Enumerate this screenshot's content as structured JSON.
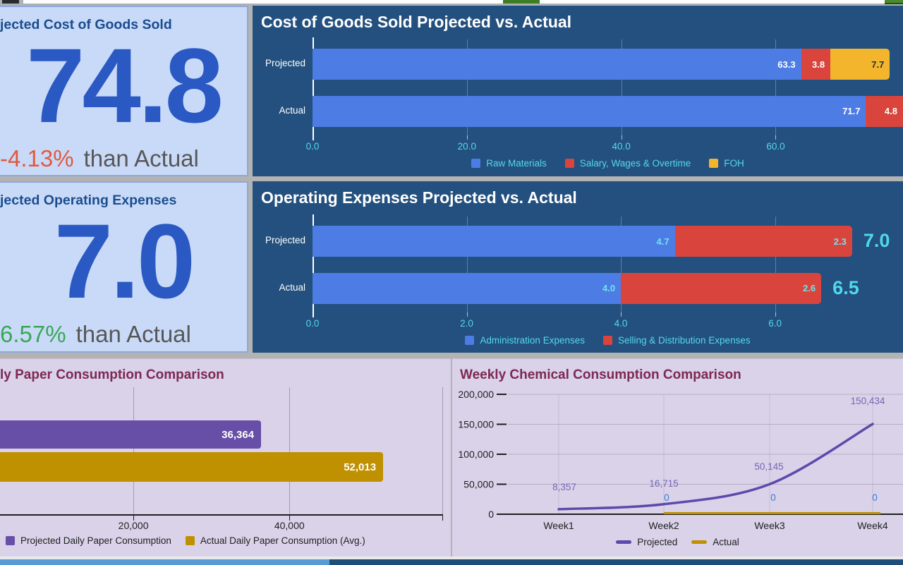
{
  "kpis": {
    "cogs": {
      "title": "jected Cost of Goods Sold",
      "value": "74.8",
      "delta": "-4.13%",
      "delta_color": "#e0593f",
      "suffix": "than Actual"
    },
    "opex": {
      "title": "jected Operating Expenses",
      "value": "7.0",
      "delta": "6.57%",
      "delta_color": "#3aa757",
      "suffix": "than Actual"
    }
  },
  "chart_data": [
    {
      "id": "cogs",
      "type": "bar",
      "orientation": "horizontal",
      "stacked": true,
      "title": "Cost of Goods Sold Projected vs. Actual",
      "categories": [
        "Projected",
        "Actual"
      ],
      "series": [
        {
          "name": "Raw Materials",
          "color": "#4d7de4",
          "values": [
            63.3,
            71.7
          ],
          "labels": [
            "63.3",
            "71.7"
          ],
          "label_color": "#ffffff"
        },
        {
          "name": "Salary, Wages & Overtime",
          "color": "#d9453c",
          "values": [
            3.8,
            4.8
          ],
          "labels": [
            "3.8",
            "4.8"
          ],
          "label_color": "#ffffff"
        },
        {
          "name": "FOH",
          "color": "#f2b52c",
          "values": [
            7.7,
            null
          ],
          "labels": [
            "7.7",
            null
          ],
          "label_color": "#2a2f36"
        }
      ],
      "x_ticks": [
        {
          "v": 0,
          "label": "0.0"
        },
        {
          "v": 20,
          "label": "20.0"
        },
        {
          "v": 40,
          "label": "40.0"
        },
        {
          "v": 60,
          "label": "60.0"
        }
      ],
      "xlim": [
        0,
        76.5
      ],
      "grid": true,
      "legend_position": "bottom"
    },
    {
      "id": "opex",
      "type": "bar",
      "orientation": "horizontal",
      "stacked": true,
      "title": "Operating Expenses Projected vs. Actual",
      "categories": [
        "Projected",
        "Actual"
      ],
      "totals": [
        "7.0",
        "6.5"
      ],
      "series": [
        {
          "name": "Administration Expenses",
          "color": "#4d7de4",
          "values": [
            4.7,
            4.0
          ],
          "labels": [
            "4.7",
            "4.0"
          ],
          "label_color": "#6fe3ef"
        },
        {
          "name": "Selling & Distribution Expenses",
          "color": "#d9453c",
          "values": [
            2.3,
            2.6
          ],
          "labels": [
            "2.3",
            "2.6"
          ],
          "label_color": "#6fe3ef"
        }
      ],
      "x_ticks": [
        {
          "v": 0,
          "label": "0.0"
        },
        {
          "v": 2,
          "label": "2.0"
        },
        {
          "v": 4,
          "label": "4.0"
        },
        {
          "v": 6,
          "label": "6.0"
        }
      ],
      "xlim": [
        0,
        7.66
      ],
      "grid": true,
      "legend_position": "bottom"
    },
    {
      "id": "paper",
      "type": "bar",
      "orientation": "horizontal",
      "stacked": false,
      "title": "ly Paper Consumption Comparison",
      "series": [
        {
          "name": "Projected Daily Paper Consumption",
          "color": "#674ea7",
          "value": 36364,
          "label": "36,364"
        },
        {
          "name": "Actual Daily Paper Consumption (Avg.)",
          "color": "#bf9000",
          "value": 52013,
          "label": "52,013"
        }
      ],
      "x_ticks": [
        {
          "v": 20000,
          "label": "20,000"
        },
        {
          "v": 40000,
          "label": "40,000"
        }
      ],
      "xlim_view": [
        2900,
        59600
      ],
      "grid": true,
      "legend_position": "bottom"
    },
    {
      "id": "chem",
      "type": "line",
      "title": "Weekly Chemical Consumption Comparison",
      "x": [
        "Week1",
        "Week2",
        "Week3",
        "Week4"
      ],
      "series": [
        {
          "name": "Projected",
          "color": "#5e49aa",
          "values": [
            8357,
            16715,
            50145,
            150434
          ],
          "labels": [
            "8,357",
            "16,715",
            "50,145",
            "150,434"
          ],
          "label_color": "#7568b6"
        },
        {
          "name": "Actual",
          "color": "#bf9000",
          "values": [
            null,
            0,
            0,
            0
          ],
          "labels": [
            null,
            "0",
            "0",
            "0"
          ],
          "label_color": "#3c78d8"
        }
      ],
      "y_ticks": [
        {
          "v": 0,
          "label": "0"
        },
        {
          "v": 50000,
          "label": "50,000"
        },
        {
          "v": 100000,
          "label": "100,000"
        },
        {
          "v": 150000,
          "label": "150,000"
        },
        {
          "v": 200000,
          "label": "200,000"
        }
      ],
      "ylim": [
        0,
        200000
      ],
      "grid": true,
      "legend_position": "bottom"
    }
  ],
  "colors": {
    "kpi_panel": "#c9daf8",
    "kpi_value_blue": "#2b59c3",
    "kpi_title_blue": "#1a4d8f",
    "navy_panel": "#23507e",
    "cyan_text": "#55d8e8",
    "lavender_panel": "#d9d2e9",
    "maroon_title": "#7e2853",
    "bottom_strip_left": "#5b9bd5",
    "bottom_strip_right": "#1f4e79"
  }
}
